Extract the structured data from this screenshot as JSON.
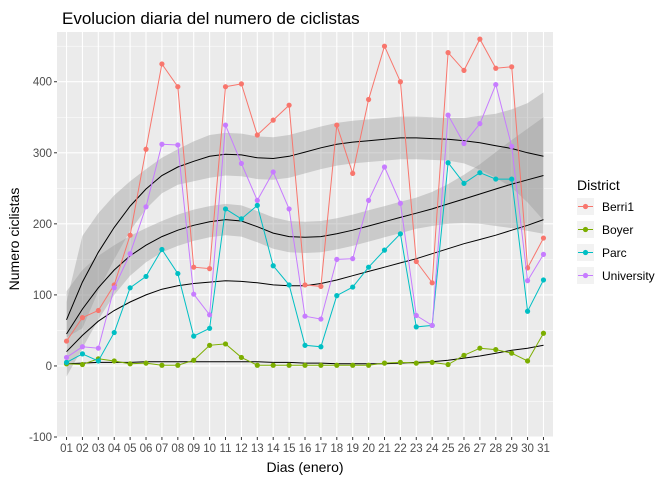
{
  "chart_data": {
    "type": "line",
    "title": "Evolucion diaria del numero de ciclistas",
    "xlabel": "Dias (enero)",
    "ylabel": "Numero ciclistas",
    "categories": [
      "01",
      "02",
      "03",
      "04",
      "05",
      "06",
      "07",
      "08",
      "09",
      "10",
      "11",
      "12",
      "13",
      "14",
      "15",
      "16",
      "17",
      "18",
      "19",
      "20",
      "21",
      "22",
      "23",
      "24",
      "25",
      "26",
      "27",
      "28",
      "29",
      "30",
      "31"
    ],
    "yticks": [
      -100,
      0,
      100,
      200,
      300,
      400
    ],
    "ylim": [
      -100,
      470
    ],
    "grid": true,
    "legend": {
      "title": "District",
      "position": "right"
    },
    "series": [
      {
        "name": "Berri1",
        "color": "#F8766D",
        "values": [
          35,
          68,
          78,
          114,
          184,
          305,
          425,
          393,
          139,
          137,
          393,
          397,
          325,
          346,
          367,
          114,
          112,
          339,
          271,
          375,
          450,
          400,
          147,
          117,
          441,
          416,
          460,
          419,
          421,
          138,
          180
        ]
      },
      {
        "name": "Boyer",
        "color": "#7CAE00",
        "values": [
          3,
          2,
          10,
          7,
          3,
          4,
          1,
          1,
          8,
          29,
          31,
          12,
          1,
          1,
          1,
          1,
          1,
          1,
          1,
          1,
          4,
          5,
          4,
          5,
          2,
          15,
          25,
          23,
          18,
          7,
          46
        ]
      },
      {
        "name": "Parc",
        "color": "#00BFC4",
        "values": [
          5,
          17,
          7,
          47,
          110,
          126,
          164,
          130,
          42,
          53,
          221,
          207,
          226,
          141,
          114,
          29,
          27,
          99,
          111,
          139,
          163,
          186,
          55,
          57,
          286,
          257,
          272,
          263,
          263,
          77,
          121
        ]
      },
      {
        "name": "University",
        "color": "#C77CFF",
        "values": [
          12,
          27,
          25,
          110,
          158,
          224,
          312,
          311,
          101,
          72,
          339,
          285,
          233,
          273,
          221,
          70,
          66,
          150,
          151,
          233,
          280,
          229,
          71,
          57,
          353,
          313,
          341,
          396,
          309,
          120,
          157
        ]
      }
    ],
    "smooth": [
      {
        "name": "Berri1",
        "values": [
          65,
          118,
          160,
          195,
          225,
          249,
          268,
          280,
          288,
          295,
          298,
          297,
          293,
          292,
          295,
          301,
          307,
          312,
          315,
          317,
          319,
          321,
          321,
          320,
          319,
          317,
          314,
          310,
          306,
          300,
          295
        ],
        "band": [
          25,
          65,
          55,
          45,
          35,
          28,
          25,
          25,
          28,
          30,
          30,
          30,
          30,
          30,
          30,
          30,
          30,
          30,
          30,
          30,
          30,
          30,
          30,
          30,
          30,
          32,
          38,
          45,
          55,
          70,
          90
        ]
      },
      {
        "name": "Parc",
        "values": [
          45,
          80,
          110,
          135,
          155,
          170,
          182,
          191,
          198,
          203,
          206,
          204,
          196,
          187,
          182,
          181,
          182,
          186,
          191,
          197,
          203,
          209,
          215,
          221,
          228,
          235,
          242,
          249,
          256,
          262,
          268
        ],
        "band": [
          60,
          55,
          45,
          35,
          28,
          24,
          22,
          22,
          22,
          22,
          22,
          22,
          22,
          22,
          22,
          22,
          22,
          22,
          22,
          22,
          22,
          22,
          22,
          24,
          28,
          34,
          42,
          52,
          62,
          72,
          82
        ]
      },
      {
        "name": "University",
        "values": [
          20,
          43,
          63,
          78,
          90,
          100,
          108,
          113,
          116,
          118,
          120,
          119,
          117,
          114,
          113,
          113,
          116,
          121,
          127,
          133,
          139,
          145,
          151,
          158,
          165,
          172,
          178,
          184,
          191,
          198,
          206
        ]
      },
      {
        "name": "Boyer",
        "values": [
          3,
          4,
          5,
          5,
          5,
          6,
          6,
          6,
          6,
          6,
          6,
          6,
          6,
          5,
          5,
          4,
          4,
          3,
          3,
          3,
          3,
          4,
          5,
          6,
          8,
          11,
          14,
          18,
          22,
          25,
          29
        ]
      }
    ]
  }
}
